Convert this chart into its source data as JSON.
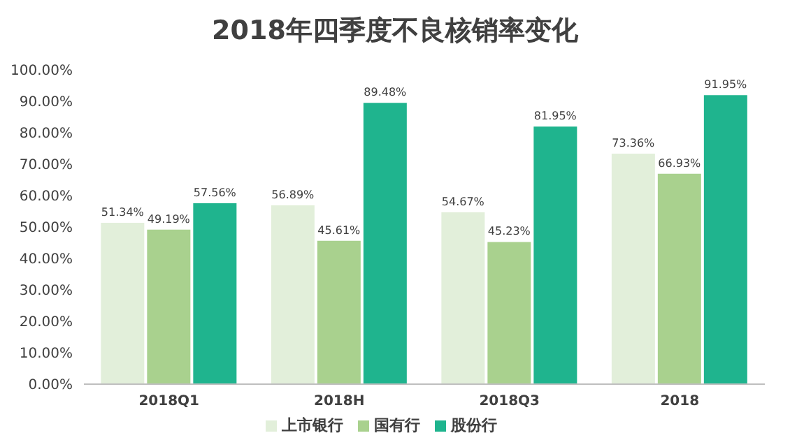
{
  "chart_data": {
    "type": "bar",
    "title": "2018年四季度不良核销率变化",
    "categories": [
      "2018Q1",
      "2018H",
      "2018Q3",
      "2018"
    ],
    "series": [
      {
        "name": "上市银行",
        "color": "#e2efda",
        "values": [
          51.34,
          56.89,
          54.67,
          73.36
        ],
        "value_labels": [
          "51.34%",
          "56.89%",
          "54.67%",
          "73.36%"
        ]
      },
      {
        "name": "国有行",
        "color": "#a9d18e",
        "values": [
          49.19,
          45.61,
          45.23,
          66.93
        ],
        "value_labels": [
          "49.19%",
          "45.61%",
          "45.23%",
          "66.93%"
        ]
      },
      {
        "name": "股份行",
        "color": "#1fb48e",
        "values": [
          57.56,
          89.48,
          81.95,
          91.95
        ],
        "value_labels": [
          "57.56%",
          "89.48%",
          "81.95%",
          "91.95%"
        ]
      }
    ],
    "ylim": [
      0,
      100
    ],
    "yticks": [
      {
        "value": 0,
        "label": "0.00%"
      },
      {
        "value": 10,
        "label": "10.00%"
      },
      {
        "value": 20,
        "label": "20.00%"
      },
      {
        "value": 30,
        "label": "30.00%"
      },
      {
        "value": 40,
        "label": "40.00%"
      },
      {
        "value": 50,
        "label": "50.00%"
      },
      {
        "value": 60,
        "label": "60.00%"
      },
      {
        "value": 70,
        "label": "70.00%"
      },
      {
        "value": 80,
        "label": "80.00%"
      },
      {
        "value": 90,
        "label": "90.00%"
      },
      {
        "value": 100,
        "label": "100.00%"
      }
    ],
    "legend": "bottom"
  }
}
